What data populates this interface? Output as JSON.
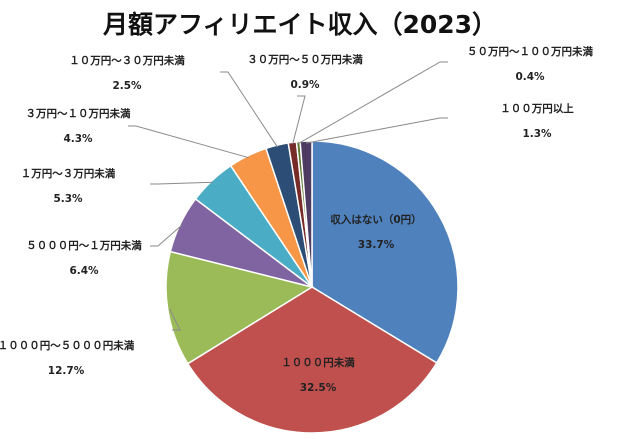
{
  "chart_data": {
    "type": "pie",
    "title": "月額アフィリエイト収入（2023）",
    "slices": [
      {
        "label": "収入はない（0円）",
        "value": 33.7,
        "display": "33.7%",
        "color": "#4f81bd"
      },
      {
        "label": "１０００円未満",
        "value": 32.5,
        "display": "32.5%",
        "color": "#c0504d"
      },
      {
        "label": "１０００円～５０００円未満",
        "value": 12.7,
        "display": "12.7%",
        "color": "#9bbb59"
      },
      {
        "label": "５０００円～１万円未満",
        "value": 6.4,
        "display": "6.4%",
        "color": "#8064a2"
      },
      {
        "label": "１万円～３万円未満",
        "value": 5.3,
        "display": "5.3%",
        "color": "#4bacc6"
      },
      {
        "label": "３万円～１０万円未満",
        "value": 4.3,
        "display": "4.3%",
        "color": "#f79646"
      },
      {
        "label": "１０万円～３０万円未満",
        "value": 2.5,
        "display": "2.5%",
        "color": "#2c4d75"
      },
      {
        "label": "３０万円～５０万円未満",
        "value": 0.9,
        "display": "0.9%",
        "color": "#772c2a"
      },
      {
        "label": "５０万円～１００万円未満",
        "value": 0.4,
        "display": "0.4%",
        "color": "#5f7530"
      },
      {
        "label": "１００万円以上",
        "value": 1.3,
        "display": "1.3%",
        "color": "#4d3b62"
      }
    ],
    "legend": "none"
  }
}
